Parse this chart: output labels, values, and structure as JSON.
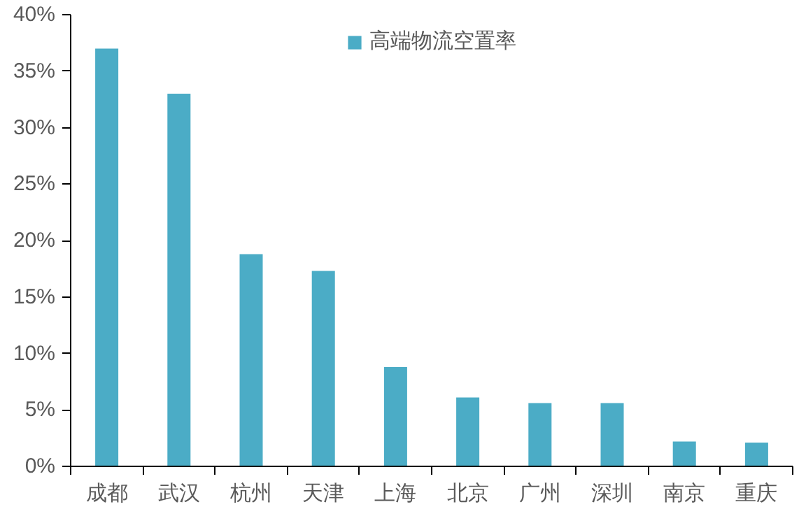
{
  "chart_data": {
    "type": "bar",
    "categories": [
      "成都",
      "武汉",
      "杭州",
      "天津",
      "上海",
      "北京",
      "广州",
      "深圳",
      "南京",
      "重庆"
    ],
    "series": [
      {
        "name": "高端物流空置率",
        "color": "#4bacc6",
        "values": [
          37.0,
          33.0,
          18.8,
          17.3,
          8.8,
          6.1,
          5.6,
          5.6,
          2.2,
          2.1
        ]
      }
    ],
    "ylim": [
      0,
      40
    ],
    "yticks": [
      {
        "value": 0,
        "label": "0%"
      },
      {
        "value": 5,
        "label": "5%"
      },
      {
        "value": 10,
        "label": "10%"
      },
      {
        "value": 15,
        "label": "15%"
      },
      {
        "value": 20,
        "label": "20%"
      },
      {
        "value": 25,
        "label": "25%"
      },
      {
        "value": 30,
        "label": "30%"
      },
      {
        "value": 35,
        "label": "35%"
      },
      {
        "value": 40,
        "label": "40%"
      }
    ],
    "grid": false,
    "legend": "top"
  }
}
